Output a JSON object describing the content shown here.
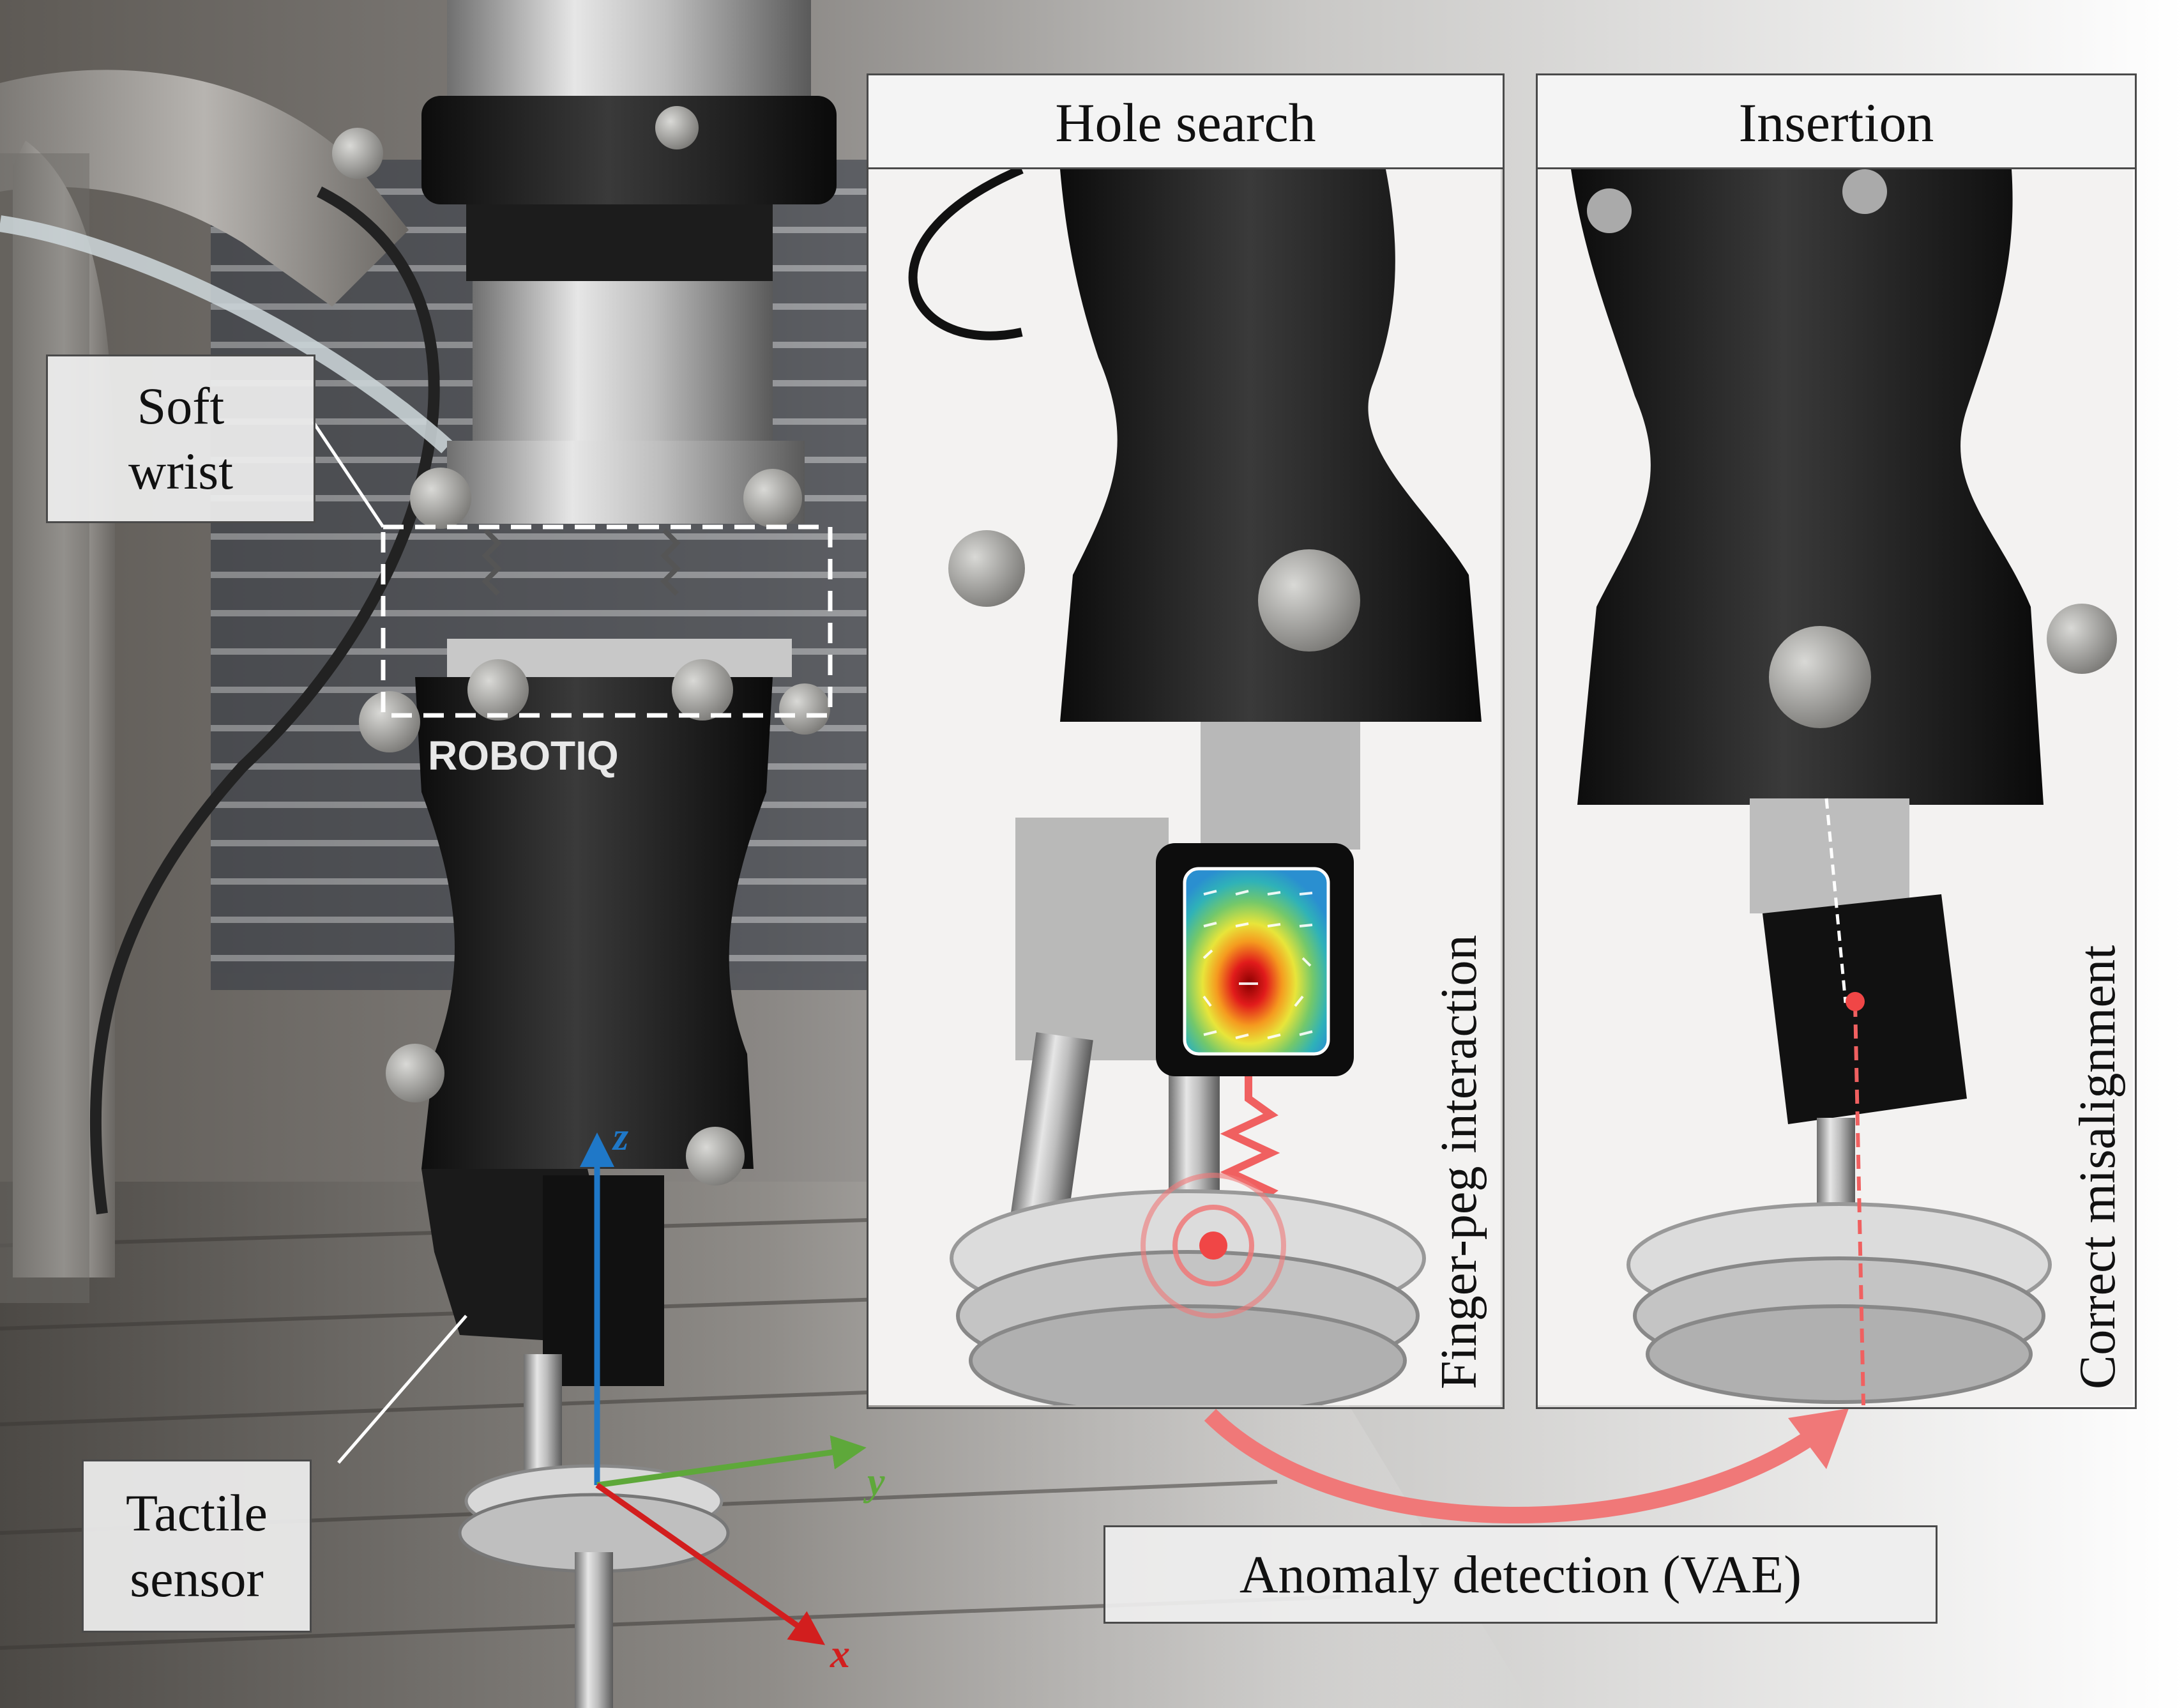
{
  "labels": {
    "soft_wrist_line1": "Soft",
    "soft_wrist_line2": "wrist",
    "tactile_line1": "Tactile",
    "tactile_line2": "sensor",
    "hole_search": "Hole search",
    "insertion": "Insertion",
    "finger_peg": "Finger-peg interaction",
    "correct_misalignment": "Correct misalignment",
    "anomaly_detection": "Anomaly detection (VAE)",
    "gripper_brand": "ROBOTIQ"
  },
  "axes": {
    "z": "z",
    "y": "y",
    "x": "x"
  },
  "colors": {
    "z_axis": "#1f78c8",
    "y_axis": "#5ea83a",
    "x_axis": "#d21e1e",
    "highlight": "#f07878",
    "dashed_box": "#ffffff"
  }
}
